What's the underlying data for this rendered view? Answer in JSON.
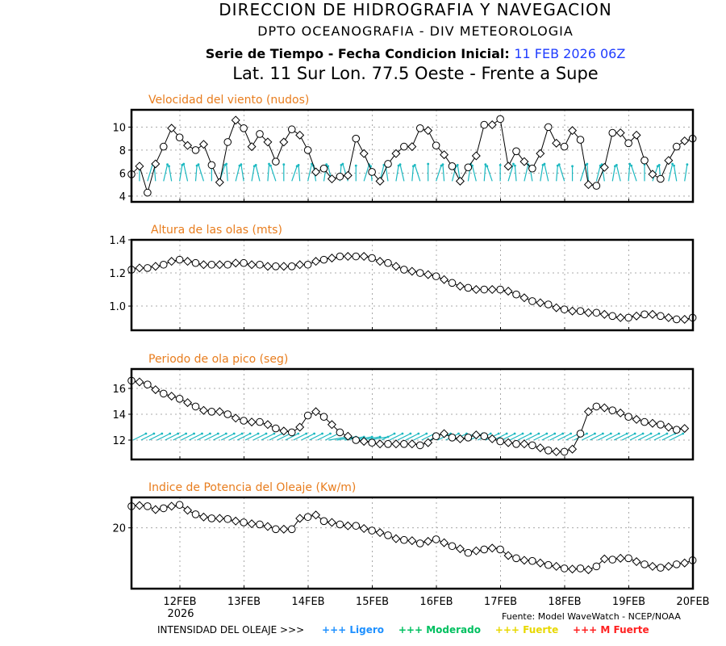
{
  "header": {
    "line1": "DIRECCION DE HIDROGRAFIA Y NAVEGACION",
    "line2": "DPTO OCEANOGRAFIA - DIV METEOROLOGIA",
    "line3_label": "Serie de Tiempo - Fecha Condicion Inicial:",
    "line3_date": "11 FEB 2026 06Z",
    "line4": "Lat. 11 Sur  Lon. 77.5 Oeste - Frente a Supe"
  },
  "footer": {
    "source": "Fuente: Model WaveWatch - NCEP/NOAA",
    "legend_label": "INTENSIDAD DEL OLEAJE >>>",
    "legend_items": [
      {
        "label": "+++ Ligero",
        "color": "#1e90ff"
      },
      {
        "label": "+++ Moderado",
        "color": "#00c060"
      },
      {
        "label": "+++ Fuerte",
        "color": "#e8d800"
      },
      {
        "label": "+++ M Fuerte",
        "color": "#ff2020"
      }
    ]
  },
  "colors": {
    "title": "#e87d1e",
    "arrows": "#1ab8c0",
    "line": "#000000"
  },
  "chart_data": [
    {
      "type": "line",
      "title": "Velocidad del viento (nudos)",
      "x_ticks": [
        "12FEB",
        "13FEB",
        "14FEB",
        "15FEB",
        "16FEB",
        "17FEB",
        "18FEB",
        "19FEB",
        "20FEB"
      ],
      "x_subtick": "2026",
      "x_step_hours": 3,
      "ylim": [
        3.5,
        11.5
      ],
      "yticks": [
        "4",
        "6",
        "8",
        "10"
      ],
      "ytick_values": [
        4,
        6,
        8,
        10
      ],
      "has_arrows": true,
      "values": [
        5.9,
        6.6,
        4.3,
        6.8,
        8.3,
        9.9,
        9.1,
        8.4,
        8.0,
        8.5,
        6.7,
        5.2,
        8.7,
        10.6,
        9.9,
        8.3,
        9.4,
        8.7,
        7.0,
        8.7,
        9.8,
        9.3,
        8.0,
        6.1,
        6.4,
        5.5,
        5.7,
        5.8,
        9.0,
        7.7,
        6.1,
        5.3,
        6.8,
        7.7,
        8.3,
        8.3,
        9.9,
        9.7,
        8.4,
        7.6,
        6.6,
        5.3,
        6.5,
        7.5,
        10.2,
        10.2,
        10.7,
        6.6,
        7.9,
        7.0,
        6.4,
        7.7,
        10.0,
        8.6,
        8.3,
        9.7,
        8.9,
        5.0,
        4.9,
        6.5,
        9.5,
        9.5,
        8.6,
        9.3,
        7.1,
        5.9,
        5.5,
        7.1,
        8.3,
        8.8,
        9.0
      ]
    },
    {
      "type": "line",
      "title": "Altura de las olas (mts)",
      "x_ticks": [
        "12FEB",
        "13FEB",
        "14FEB",
        "15FEB",
        "16FEB",
        "17FEB",
        "18FEB",
        "19FEB",
        "20FEB"
      ],
      "ylim": [
        0.854,
        1.4
      ],
      "yticks": [
        "1.0",
        "1.2",
        "1.4"
      ],
      "ytick_values": [
        1.0,
        1.2,
        1.4
      ],
      "has_arrows": false,
      "values": [
        1.22,
        1.23,
        1.23,
        1.24,
        1.25,
        1.27,
        1.28,
        1.27,
        1.26,
        1.25,
        1.25,
        1.25,
        1.25,
        1.26,
        1.26,
        1.25,
        1.25,
        1.24,
        1.24,
        1.24,
        1.24,
        1.25,
        1.25,
        1.27,
        1.28,
        1.29,
        1.3,
        1.3,
        1.3,
        1.3,
        1.29,
        1.27,
        1.26,
        1.24,
        1.22,
        1.21,
        1.2,
        1.19,
        1.18,
        1.16,
        1.14,
        1.12,
        1.11,
        1.1,
        1.1,
        1.1,
        1.1,
        1.09,
        1.07,
        1.05,
        1.03,
        1.02,
        1.01,
        0.99,
        0.98,
        0.97,
        0.97,
        0.96,
        0.96,
        0.95,
        0.94,
        0.93,
        0.93,
        0.94,
        0.95,
        0.95,
        0.94,
        0.93,
        0.92,
        0.92,
        0.93,
        0.94,
        0.96
      ]
    },
    {
      "type": "line",
      "title": "Periodo de ola pico (seg)",
      "x_ticks": [
        "12FEB",
        "13FEB",
        "14FEB",
        "15FEB",
        "16FEB",
        "17FEB",
        "18FEB",
        "19FEB",
        "20FEB"
      ],
      "ylim": [
        10.5,
        17.5
      ],
      "yticks": [
        "12",
        "14",
        "16"
      ],
      "ytick_values": [
        12,
        14,
        16
      ],
      "has_arrows": true,
      "values": [
        16.6,
        16.5,
        16.3,
        15.9,
        15.6,
        15.4,
        15.2,
        14.9,
        14.6,
        14.3,
        14.2,
        14.2,
        14.0,
        13.7,
        13.5,
        13.4,
        13.4,
        13.2,
        12.9,
        12.7,
        12.6,
        13.0,
        13.9,
        14.2,
        13.8,
        13.2,
        12.6,
        12.3,
        12.0,
        11.9,
        11.8,
        11.7,
        11.7,
        11.7,
        11.7,
        11.7,
        11.6,
        11.8,
        12.3,
        12.5,
        12.2,
        12.1,
        12.2,
        12.4,
        12.3,
        12.1,
        11.9,
        11.8,
        11.7,
        11.7,
        11.6,
        11.4,
        11.2,
        11.1,
        11.1,
        11.3,
        12.5,
        14.2,
        14.6,
        14.5,
        14.3,
        14.1,
        13.8,
        13.6,
        13.4,
        13.3,
        13.2,
        13.0,
        12.8,
        12.9
      ]
    },
    {
      "type": "line",
      "title": "Indice de Potencia del Oleaje (Kw/m)",
      "x_ticks": [
        "12FEB",
        "13FEB",
        "14FEB",
        "15FEB",
        "16FEB",
        "17FEB",
        "18FEB",
        "19FEB",
        "20FEB"
      ],
      "ylim": [
        11.0,
        24.5
      ],
      "yticks": [
        "20"
      ],
      "ytick_values": [
        20
      ],
      "has_arrows": false,
      "values": [
        23.2,
        23.3,
        23.2,
        22.7,
        22.9,
        23.2,
        23.4,
        22.6,
        22.0,
        21.6,
        21.4,
        21.4,
        21.3,
        21.0,
        20.8,
        20.6,
        20.5,
        20.2,
        19.8,
        19.8,
        19.8,
        21.4,
        21.6,
        21.9,
        21.0,
        20.8,
        20.5,
        20.3,
        20.3,
        19.9,
        19.6,
        19.3,
        18.9,
        18.4,
        18.2,
        18.1,
        17.7,
        18.0,
        18.3,
        17.8,
        17.3,
        16.9,
        16.3,
        16.6,
        16.8,
        17.0,
        16.8,
        15.9,
        15.5,
        15.2,
        15.1,
        14.8,
        14.5,
        14.3,
        14.0,
        13.9,
        14.0,
        13.8,
        14.3,
        15.4,
        15.3,
        15.5,
        15.5,
        15.0,
        14.6,
        14.3,
        14.1,
        14.3,
        14.6,
        14.8,
        15.2
      ]
    }
  ]
}
